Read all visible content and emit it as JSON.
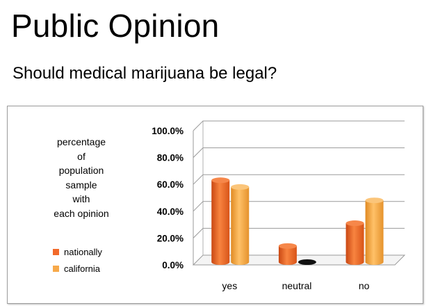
{
  "page": {
    "title": "Public Opinion",
    "subtitle": "Should medical marijuana be legal?"
  },
  "chart_data": {
    "type": "bar",
    "title": "",
    "ylabel": "percentage of population sample with each opinion",
    "ylabel_lines": [
      "percentage",
      "of",
      "population",
      "sample",
      "with",
      "each opinion"
    ],
    "xlabel": "",
    "categories": [
      "yes",
      "neutral",
      "no"
    ],
    "series": [
      {
        "name": "nationally",
        "values": [
          61,
          12,
          29
        ],
        "color": "#f26a2a"
      },
      {
        "name": "california",
        "values": [
          56,
          0.5,
          46
        ],
        "color": "#f7a94a"
      }
    ],
    "yticks": [
      "0.0%",
      "20.0%",
      "40.0%",
      "60.0%",
      "80.0%",
      "100.0%"
    ],
    "ylim": [
      0,
      100
    ],
    "grid": true,
    "legend_position": "left-bottom",
    "style": "3d-cylinder"
  }
}
